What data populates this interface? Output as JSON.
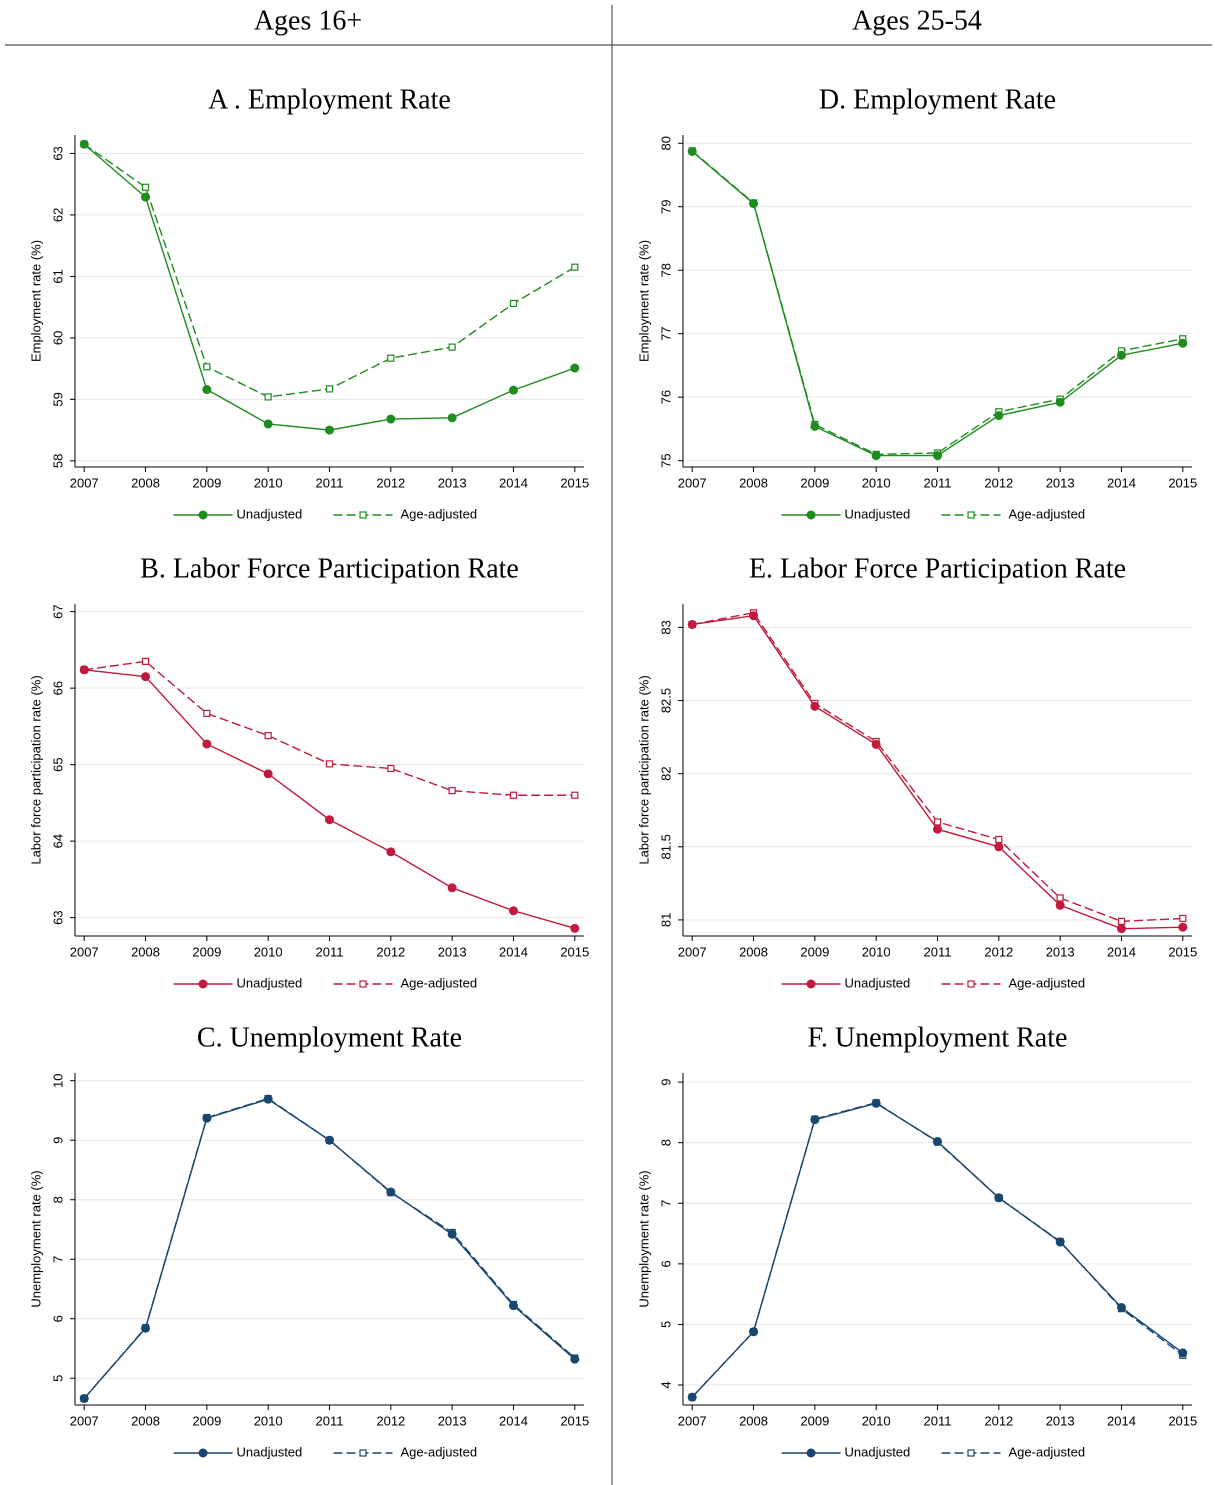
{
  "headers": [
    "Ages 16+",
    "Ages 25-54"
  ],
  "chart_data": [
    {
      "type": "line",
      "title": "A . Employment Rate",
      "ylabel": "Employment rate (%)",
      "x": [
        2007,
        2008,
        2009,
        2010,
        2011,
        2012,
        2013,
        2014,
        2015
      ],
      "xlim": [
        2006.85,
        2015.15
      ],
      "xticks": [
        2007,
        2008,
        2009,
        2010,
        2011,
        2012,
        2013,
        2014,
        2015
      ],
      "ylim": [
        57.9,
        63.3
      ],
      "yticks": [
        58,
        59,
        60,
        61,
        62,
        63
      ],
      "grid": true,
      "series": [
        {
          "name": "Unadjusted",
          "color": "#1e8c1e",
          "line_style": "solid",
          "marker": "filled circle",
          "values": [
            63.15,
            62.29,
            59.16,
            58.6,
            58.5,
            58.68,
            58.7,
            59.15,
            59.51
          ]
        },
        {
          "name": "Age-adjusted",
          "color": "#1e8c1e",
          "line_style": "dashed",
          "marker": "hollow square",
          "values": [
            63.15,
            62.45,
            59.53,
            59.04,
            59.17,
            59.67,
            59.85,
            60.56,
            61.15
          ]
        }
      ]
    },
    {
      "type": "line",
      "title": "B. Labor Force Participation Rate",
      "ylabel": "Labor force participation rate (%)",
      "x": [
        2007,
        2008,
        2009,
        2010,
        2011,
        2012,
        2013,
        2014,
        2015
      ],
      "xlim": [
        2006.85,
        2015.15
      ],
      "xticks": [
        2007,
        2008,
        2009,
        2010,
        2011,
        2012,
        2013,
        2014,
        2015
      ],
      "ylim": [
        62.76,
        67.1
      ],
      "yticks": [
        63,
        64,
        65,
        66,
        67
      ],
      "grid": true,
      "series": [
        {
          "name": "Unadjusted",
          "color": "#c01a3c",
          "line_style": "solid",
          "marker": "filled circle",
          "values": [
            66.24,
            66.15,
            65.27,
            64.88,
            64.28,
            63.86,
            63.39,
            63.09,
            62.86
          ]
        },
        {
          "name": "Age-adjusted",
          "color": "#c01a3c",
          "line_style": "dashed",
          "marker": "hollow square",
          "values": [
            66.24,
            66.35,
            65.67,
            65.38,
            65.01,
            64.95,
            64.66,
            64.6,
            64.6
          ]
        }
      ]
    },
    {
      "type": "line",
      "title": "C. Unemployment Rate",
      "ylabel": "Unemployment rate (%)",
      "x": [
        2007,
        2008,
        2009,
        2010,
        2011,
        2012,
        2013,
        2014,
        2015
      ],
      "xlim": [
        2006.85,
        2015.15
      ],
      "xticks": [
        2007,
        2008,
        2009,
        2010,
        2011,
        2012,
        2013,
        2014,
        2015
      ],
      "ylim": [
        4.55,
        10.13
      ],
      "yticks": [
        5,
        6,
        7,
        8,
        9,
        10
      ],
      "grid": true,
      "series": [
        {
          "name": "Unadjusted",
          "color": "#1a476f",
          "line_style": "solid",
          "marker": "filled circle",
          "values": [
            4.66,
            5.84,
            9.37,
            9.69,
            9.0,
            8.13,
            7.42,
            6.22,
            5.32
          ]
        },
        {
          "name": "Age-adjusted",
          "color": "#1a476f",
          "line_style": "dashed",
          "marker": "hollow square",
          "values": [
            4.66,
            5.85,
            9.38,
            9.7,
            9.0,
            8.12,
            7.45,
            6.24,
            5.34
          ]
        }
      ]
    },
    {
      "type": "line",
      "title": "D. Employment Rate",
      "ylabel": "Employment rate (%)",
      "x": [
        2007,
        2008,
        2009,
        2010,
        2011,
        2012,
        2013,
        2014,
        2015
      ],
      "xlim": [
        2006.85,
        2015.15
      ],
      "xticks": [
        2007,
        2008,
        2009,
        2010,
        2011,
        2012,
        2013,
        2014,
        2015
      ],
      "ylim": [
        74.9,
        80.13
      ],
      "yticks": [
        75,
        76,
        77,
        78,
        79,
        80
      ],
      "grid": true,
      "series": [
        {
          "name": "Unadjusted",
          "color": "#1e8c1e",
          "line_style": "solid",
          "marker": "filled circle",
          "values": [
            79.87,
            79.05,
            75.54,
            75.08,
            75.08,
            75.71,
            75.92,
            76.66,
            76.85
          ]
        },
        {
          "name": "Age-adjusted",
          "color": "#1e8c1e",
          "line_style": "dashed",
          "marker": "hollow square",
          "values": [
            79.88,
            79.06,
            75.57,
            75.1,
            75.12,
            75.77,
            75.97,
            76.73,
            76.92
          ]
        }
      ]
    },
    {
      "type": "line",
      "title": "E. Labor Force Participation Rate",
      "ylabel": "Labor force participation rate (%)",
      "x": [
        2007,
        2008,
        2009,
        2010,
        2011,
        2012,
        2013,
        2014,
        2015
      ],
      "xlim": [
        2006.85,
        2015.15
      ],
      "xticks": [
        2007,
        2008,
        2009,
        2010,
        2011,
        2012,
        2013,
        2014,
        2015
      ],
      "ylim": [
        80.89,
        83.16
      ],
      "yticks": [
        81,
        81.5,
        82,
        82.5,
        83
      ],
      "grid": true,
      "series": [
        {
          "name": "Unadjusted",
          "color": "#c01a3c",
          "line_style": "solid",
          "marker": "filled circle",
          "values": [
            83.02,
            83.08,
            82.46,
            82.2,
            81.62,
            81.5,
            81.1,
            80.94,
            80.95
          ]
        },
        {
          "name": "Age-adjusted",
          "color": "#c01a3c",
          "line_style": "dashed",
          "marker": "hollow square",
          "values": [
            83.02,
            83.1,
            82.48,
            82.22,
            81.67,
            81.55,
            81.15,
            80.99,
            81.01
          ]
        }
      ]
    },
    {
      "type": "line",
      "title": "F. Unemployment Rate",
      "ylabel": "Unemployment rate (%)",
      "x": [
        2007,
        2008,
        2009,
        2010,
        2011,
        2012,
        2013,
        2014,
        2015
      ],
      "xlim": [
        2006.85,
        2015.15
      ],
      "xticks": [
        2007,
        2008,
        2009,
        2010,
        2011,
        2012,
        2013,
        2014,
        2015
      ],
      "ylim": [
        3.67,
        9.15
      ],
      "yticks": [
        4,
        5,
        6,
        7,
        8,
        9
      ],
      "grid": true,
      "series": [
        {
          "name": "Unadjusted",
          "color": "#1a476f",
          "line_style": "solid",
          "marker": "filled circle",
          "values": [
            3.8,
            4.88,
            8.38,
            8.65,
            8.02,
            7.09,
            6.36,
            5.28,
            4.53
          ]
        },
        {
          "name": "Age-adjusted",
          "color": "#1a476f",
          "line_style": "dashed",
          "marker": "hollow square",
          "values": [
            3.8,
            4.88,
            8.39,
            8.66,
            8.01,
            7.09,
            6.37,
            5.26,
            4.49
          ]
        }
      ]
    }
  ]
}
